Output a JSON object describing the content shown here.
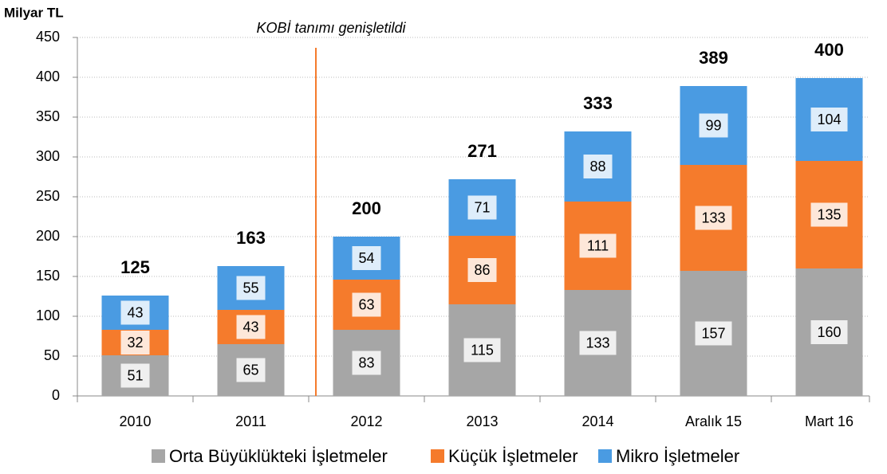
{
  "chart_data": {
    "type": "stacked_bar",
    "y_axis_label": "Milyar TL",
    "annotation": "KOBİ tanımı genişletildi",
    "categories": [
      "2010",
      "2011",
      "2012",
      "2013",
      "2014",
      "Aralık 15",
      "Mart 16"
    ],
    "series": [
      {
        "name": "Orta Büyüklükteki İşletmeler",
        "color": "#a6a6a6",
        "values": [
          51,
          65,
          83,
          115,
          133,
          157,
          160
        ]
      },
      {
        "name": "Küçük İşletmeler",
        "color": "#f57b2c",
        "values": [
          32,
          43,
          63,
          86,
          111,
          133,
          135
        ]
      },
      {
        "name": "Mikro İşletmeler",
        "color": "#4a9be2",
        "values": [
          43,
          55,
          54,
          71,
          88,
          99,
          104
        ]
      }
    ],
    "totals": [
      125,
      163,
      200,
      271,
      333,
      389,
      400
    ],
    "ylim": [
      0,
      450
    ],
    "yticks": [
      0,
      50,
      100,
      150,
      200,
      250,
      300,
      350,
      400,
      450
    ],
    "grid": true,
    "legend": "bottom"
  }
}
